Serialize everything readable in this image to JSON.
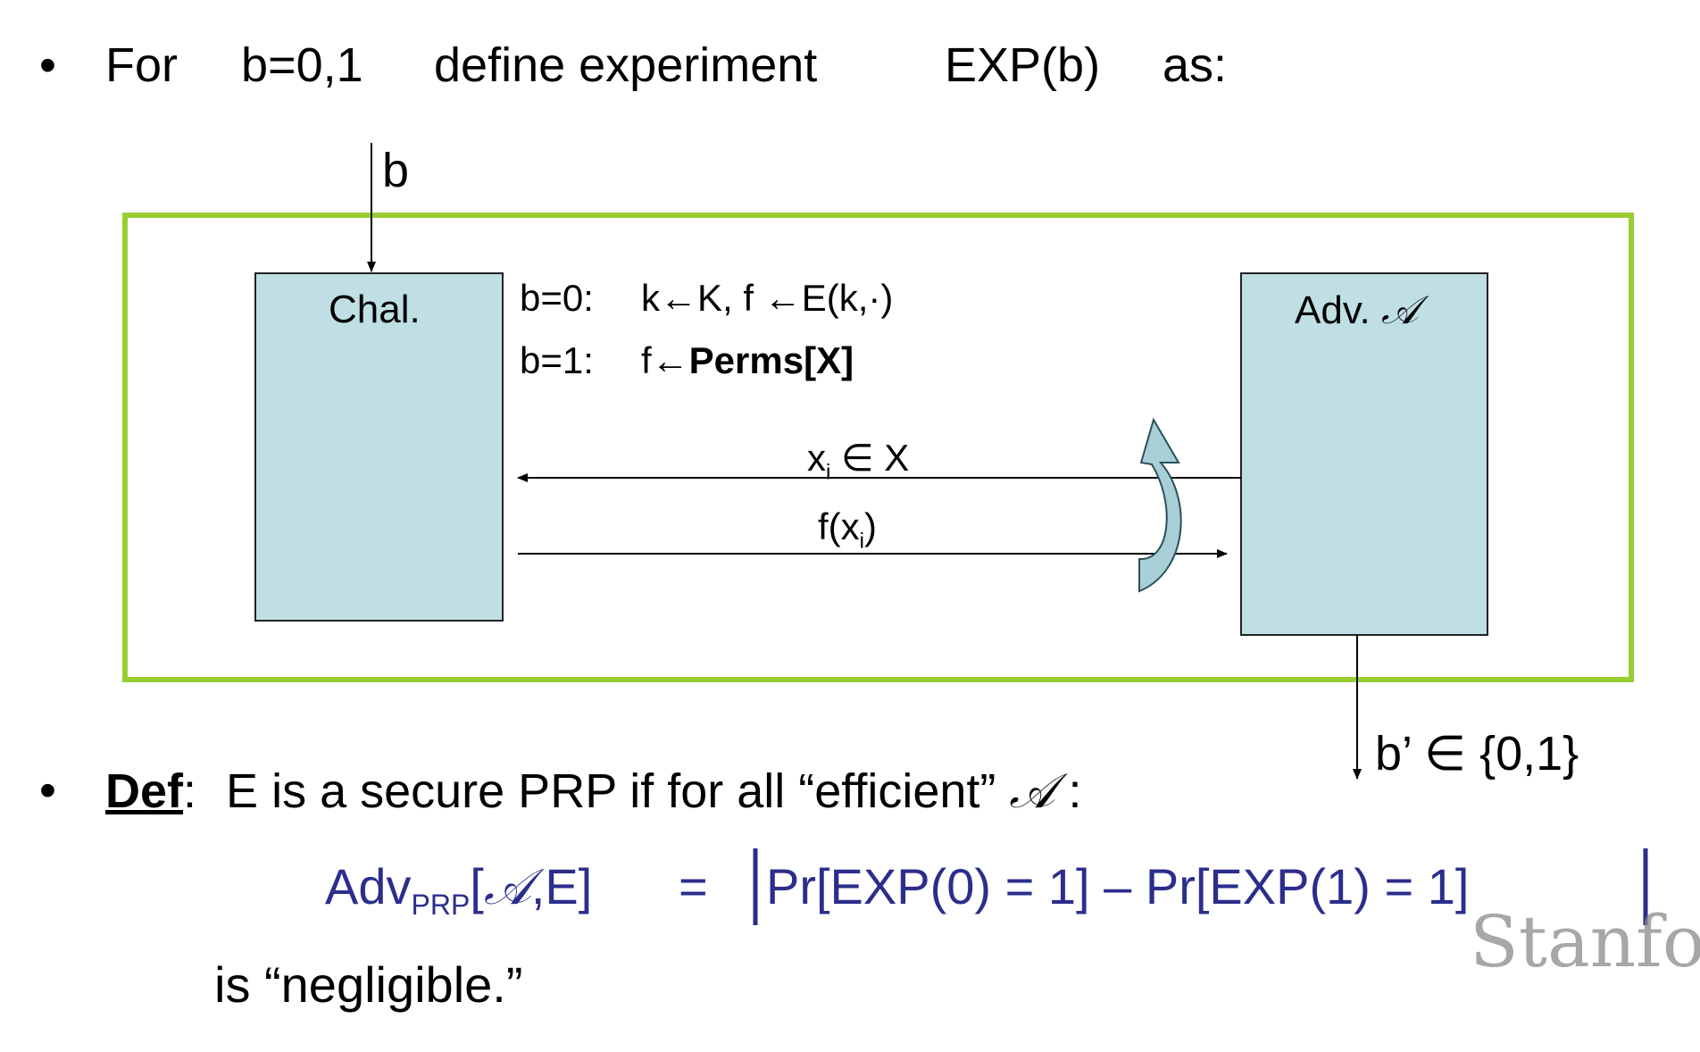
{
  "bullet1": {
    "marker": "•",
    "for": "For",
    "b_range": "b=0,1",
    "define": "define experiment",
    "exp": "EXP(b)",
    "as": "as:"
  },
  "diagram": {
    "input_label": "b",
    "challenger_label": "Chal.",
    "adversary_label": "Adv.",
    "adversary_symbol": "𝒜",
    "case_b0_prefix": "b=0:",
    "case_b0_body": "k←K,  f ←E(k,·)",
    "case_b1_prefix": "b=1:",
    "case_b1_f": "f←",
    "case_b1_perms": "Perms[X]",
    "query_x": "x",
    "query_sub": "i",
    "query_rest": " ∈ X",
    "response_f": "f(x",
    "response_sub": "i",
    "response_close": ")",
    "output_label": "b’ ∈ {0,1}",
    "colors": {
      "frame": "#9acd32",
      "box_fill": "#bfdfe4",
      "curved_arrow": "#a8cfd6"
    }
  },
  "definition": {
    "marker": "•",
    "def_word": "Def",
    "colon": ":",
    "text": "E is a secure PRP if for all “efficient”",
    "symbol": "𝒜",
    "tail": " :",
    "adv": "Adv",
    "adv_sub": "PRP",
    "adv_args_open": "[",
    "adv_args_sym": "𝒜",
    "adv_args_rest": ",E]",
    "equals": "=",
    "formula": "Pr[EXP(0) = 1] – Pr[EXP(1) = 1]",
    "negligible": "is “negligible.”"
  },
  "watermark": "Stanfo"
}
